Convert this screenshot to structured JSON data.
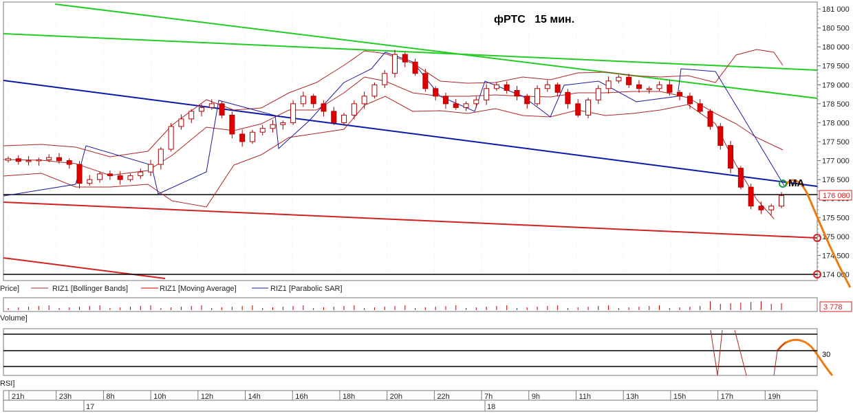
{
  "chart_data": {
    "type": "candlestick",
    "title": "фРТС   15 мин.",
    "price_axis": {
      "ylim": [
        174000,
        181000
      ],
      "ticks": [
        "181 000",
        "180 500",
        "180 000",
        "179 500",
        "179 000",
        "178 500",
        "178 000",
        "177 500",
        "177 000",
        "176 500",
        "176 000",
        "175 500",
        "175 000",
        "174 500",
        "174 000"
      ],
      "last_price_label": "176 080",
      "last_price": 176080
    },
    "time_axis": {
      "ticks": [
        "21h",
        "23h",
        "8h",
        "10h",
        "12h",
        "14h",
        "16h",
        "18h",
        "20h",
        "22h",
        "7h",
        "9h",
        "11h",
        "13h",
        "15h",
        "17h",
        "19h"
      ],
      "dates": [
        "17",
        "18"
      ]
    },
    "candles_close": [
      177050,
      176980,
      177000,
      177020,
      177080,
      177000,
      176900,
      176400,
      176500,
      176650,
      176600,
      176500,
      176600,
      176700,
      176900,
      177300,
      177900,
      178100,
      178300,
      178400,
      178500,
      178200,
      177700,
      177500,
      177750,
      177850,
      177950,
      178000,
      178500,
      178700,
      178500,
      178300,
      178000,
      178200,
      178500,
      178700,
      179000,
      179300,
      179800,
      179600,
      179300,
      178900,
      178700,
      178500,
      178400,
      178500,
      178600,
      178900,
      179000,
      178850,
      178700,
      178500,
      178900,
      179000,
      178800,
      178500,
      178200,
      178600,
      178900,
      179100,
      179200,
      179000,
      178900,
      178900,
      179000,
      178800,
      178700,
      178500,
      178300,
      177900,
      177400,
      176800,
      176300,
      175800,
      175700,
      175800,
      176080
    ],
    "indicators": [
      "RIZ1 [Bollinger Bands]",
      "RIZ1 [Moving Average]",
      "RIZ1 [Parabolic SAR]"
    ],
    "annotations": {
      "ma_label": "MA"
    },
    "panels": {
      "price_label": "Price]",
      "volume_label": "Volume]",
      "volume_last": "3 778",
      "rsi_label": "RSI]",
      "rsi_level": "30"
    }
  },
  "colors": {
    "candle_up": "#c00000",
    "candle_down": "#e00000",
    "bollinger": "#b22222",
    "moving_average": "#c00000",
    "sar": "#1a1aa0",
    "trend_green": "#22cc22",
    "trend_blue": "#0a1aa8",
    "trend_red": "#d22020",
    "forecast": "#f07a12"
  }
}
